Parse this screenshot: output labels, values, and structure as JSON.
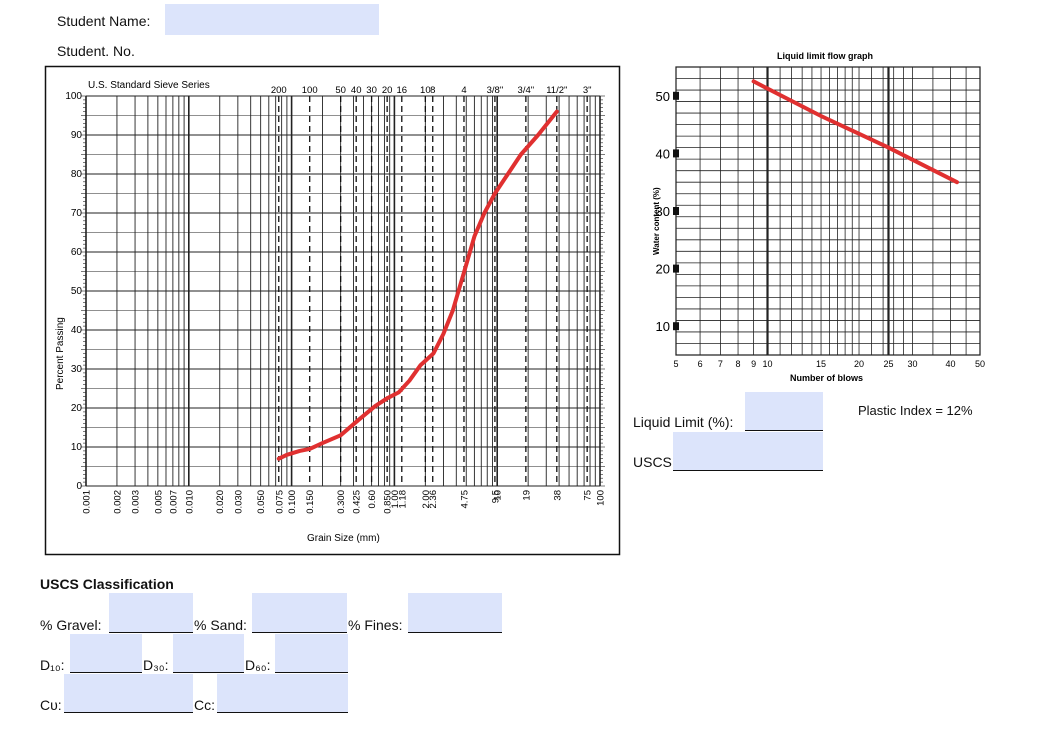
{
  "header": {
    "student_name_label": "Student Name:",
    "student_no_label": "Student. No."
  },
  "gradation_chart": {
    "sieve_series_title": "U.S. Standard  Sieve  Series",
    "sieve_labels": [
      "200",
      "100",
      "50",
      "40",
      "30",
      "20",
      "16",
      "10",
      "8",
      "4",
      "3/8\"",
      "3/4\"",
      "11/2\"",
      "3\""
    ],
    "y_axis_label": "Percent   Passing",
    "x_axis_label": "Grain  Size  (mm)",
    "y_ticks": [
      "100",
      "90",
      "80",
      "70",
      "60",
      "50",
      "40",
      "30",
      "20",
      "10",
      "0"
    ],
    "size_ticks": [
      "0.001",
      "0.002",
      "0.003",
      "0.005",
      "0.007",
      "0.010",
      "0.020",
      "0.030",
      "0.050",
      "0.075",
      "0.100",
      "0.150",
      "0.300",
      "0.425",
      "0.60",
      "0.850",
      "1.00",
      "1.18",
      "2.00",
      "2.36",
      "4.75",
      "9.5",
      "10",
      "19",
      "38",
      "75",
      "100"
    ],
    "curve_color": "#e03030",
    "chart_data": {
      "type": "line",
      "x_scale": "log",
      "xlim": [
        0.001,
        100
      ],
      "ylim": [
        0,
        100
      ],
      "x": [
        0.075,
        0.09,
        0.12,
        0.15,
        0.2,
        0.3,
        0.45,
        0.65,
        0.85,
        1.1,
        1.4,
        1.8,
        2.4,
        3.0,
        3.7,
        4.2,
        4.9,
        6.0,
        7.5,
        9.5,
        12.0,
        17.0,
        25.0,
        38.0
      ],
      "y": [
        7,
        8,
        9,
        9.5,
        11,
        13,
        17,
        20.5,
        22.5,
        24,
        27,
        31,
        34,
        39,
        45,
        50,
        56,
        64,
        70,
        75,
        79,
        85,
        90,
        96
      ],
      "grid": true
    }
  },
  "ll_chart": {
    "title": "Liquid limit flow graph",
    "x_axis_label": "Number of blows",
    "y_axis_label": "Water content (%)",
    "x_ticks": [
      "5",
      "6",
      "7",
      "8",
      "9",
      "10",
      "15",
      "20",
      "25",
      "30",
      "40",
      "50"
    ],
    "y_ticks": [
      "50",
      "40",
      "30",
      "20",
      "10"
    ],
    "curve_color": "#e03030",
    "chart_data": {
      "type": "line",
      "x_scale": "log",
      "xlim": [
        5,
        50
      ],
      "ylim": [
        5,
        55
      ],
      "x": [
        9,
        15,
        25,
        42
      ],
      "y": [
        52.5,
        46.5,
        41,
        35
      ],
      "grid": true
    }
  },
  "liquid_limit_label": "Liquid Limit (%):",
  "uscs_label": "USCS:",
  "plastic_index_text": "Plastic Index = 12%",
  "uscs_section": {
    "heading": "USCS Classification",
    "gravel_label": "% Gravel:",
    "sand_label": "% Sand:",
    "fines_label": "% Fines:",
    "d10_label": "D₁₀:",
    "d30_label": "D₃₀:",
    "d60_label": "D₆₀:",
    "cu_label": "Cᴜ:",
    "cc_label": "Cᴄ:"
  }
}
